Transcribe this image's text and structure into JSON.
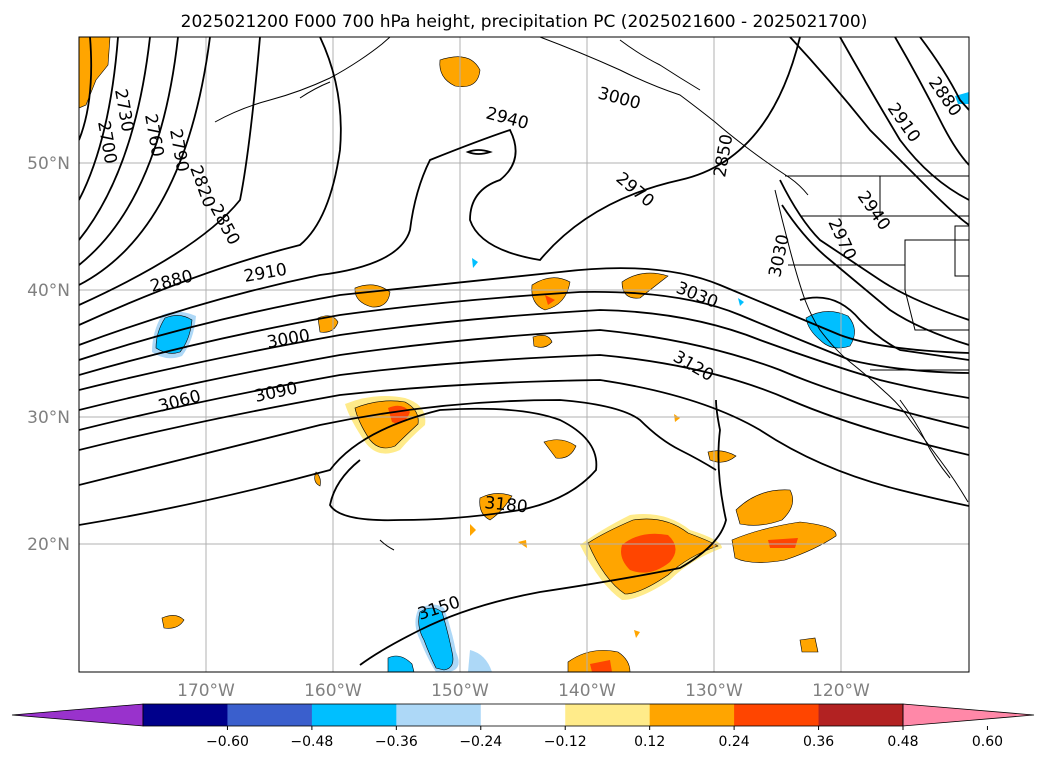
{
  "title": "2025021200 F000 700 hPa height, precipitation PC (2025021600 - 2025021700)",
  "colors": {
    "contour": "#000000",
    "coast": "#000000",
    "grid": "#b0b0b0",
    "grid_label": "#808080"
  },
  "lat_labels": [
    "50°N",
    "40°N",
    "30°N",
    "20°N"
  ],
  "lon_labels": [
    "170°W",
    "160°W",
    "150°W",
    "140°W",
    "130°W",
    "120°W"
  ],
  "contour_labels": [
    "2700",
    "2730",
    "2760",
    "2790",
    "2820",
    "2850",
    "2880",
    "2910",
    "2940",
    "2970",
    "3000",
    "3030",
    "3060",
    "3090",
    "3120",
    "3150",
    "3180",
    "3000",
    "2850",
    "2880",
    "2910",
    "2940",
    "2970",
    "3030"
  ],
  "colorbar": {
    "colors": [
      "#9932cc",
      "#00008b",
      "#3a5fcd",
      "#00bfff",
      "#add8f7",
      "#ffffff",
      "#ffeb8a",
      "#ffa500",
      "#ff4500",
      "#b22222",
      "#ff88a8"
    ],
    "tick_labels": [
      "−0.60",
      "−0.48",
      "−0.36",
      "−0.24",
      "−0.12",
      "0.12",
      "0.24",
      "0.36",
      "0.48",
      "0.60"
    ]
  },
  "precip_pos": {
    "low": "#ffeb8a",
    "mid": "#ffa500",
    "high": "#ff4500"
  },
  "precip_neg": {
    "low": "#add8f7",
    "mid": "#00bfff"
  }
}
